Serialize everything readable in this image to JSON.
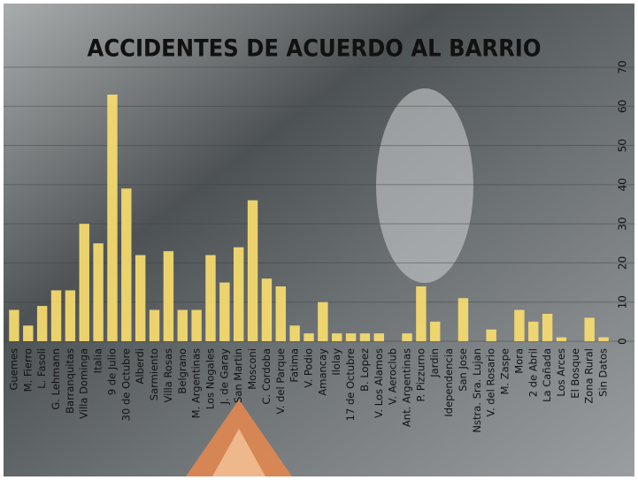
{
  "chart_data": {
    "type": "bar",
    "title": "ACCIDENTES DE ACUERDO AL BARRIO",
    "categories": [
      "Guemes",
      "M. Fierro",
      "L. Fasoli",
      "G. Lehmann",
      "Barranquitas",
      "Villa Dominga",
      "Italia",
      "9 de Julio",
      "30 de Octubre",
      "Alberdi",
      "Sarmiento",
      "Villa Rosas",
      "Belgrano",
      "M. Argentinas",
      "Los Nogales",
      "J. de Garay",
      "San Martin",
      "Mosconi",
      "C. Cordoba",
      "V. del Parque",
      "Fatima",
      "V. Podio",
      "Amancay",
      "Ilolay",
      "17 de Octubre",
      "B. Lopez",
      "V. Los Alamos",
      "V. Aeroclub",
      "Ant. Argentinas",
      "P. Pizzurno",
      "Jardin",
      "Idependencia",
      "San Jose",
      "Nstra. Sra. Lujan",
      "V. del Rosario",
      "M. Zaspe",
      "Mora",
      "2 de Abril",
      "La Cañada",
      "Los Arces",
      "El Bosque",
      "Zona Rural",
      "Sin Datos"
    ],
    "values": [
      8,
      4,
      9,
      13,
      13,
      30,
      25,
      63,
      39,
      22,
      8,
      23,
      8,
      8,
      22,
      15,
      24,
      36,
      16,
      14,
      4,
      2,
      10,
      2,
      2,
      2,
      2,
      0,
      2,
      14,
      5,
      0,
      11,
      0,
      3,
      0,
      8,
      5,
      7,
      1,
      0,
      6,
      1
    ],
    "color": "#f7dc6f",
    "ylim": [
      0,
      70
    ],
    "yticks": [
      0,
      10,
      20,
      30,
      40,
      50,
      60,
      70
    ],
    "grid": true
  }
}
